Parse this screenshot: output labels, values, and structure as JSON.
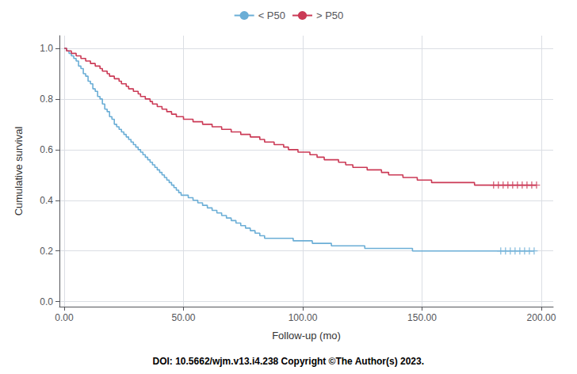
{
  "chart_data": {
    "type": "step",
    "xlabel": "Follow-up (mo)",
    "ylabel": "Cumulative survival",
    "annotation": "DOI: 10.5662/wjm.v13.i4.238 Copyright ©The Author(s) 2023.",
    "xlim": [
      -2,
      205
    ],
    "ylim": [
      -0.02,
      1.05
    ],
    "xticks": [
      {
        "value": 0,
        "label": "0.00"
      },
      {
        "value": 50,
        "label": "50.00"
      },
      {
        "value": 100,
        "label": "100.00"
      },
      {
        "value": 150,
        "label": "150.00"
      },
      {
        "value": 200,
        "label": "200.00"
      }
    ],
    "yticks": [
      {
        "value": 0,
        "label": "0.0"
      },
      0.2,
      0.4,
      0.6,
      0.8,
      {
        "value": 1,
        "label": "1.0"
      }
    ],
    "grid": true,
    "legend": "top",
    "series": [
      {
        "name": "< P50",
        "color": "#6baed6",
        "x": [
          0,
          1,
          2,
          3,
          4,
          5,
          6,
          7,
          8,
          9,
          10,
          11,
          12,
          13,
          14,
          15,
          16,
          17,
          18,
          19,
          20,
          21,
          22,
          23,
          24,
          25,
          26,
          27,
          28,
          29,
          30,
          31,
          32,
          33,
          34,
          35,
          36,
          37,
          38,
          39,
          40,
          41,
          42,
          43,
          44,
          45,
          46,
          47,
          48,
          49,
          50,
          52,
          54,
          56,
          58,
          60,
          62,
          64,
          66,
          68,
          70,
          72,
          74,
          76,
          78,
          80,
          82,
          84,
          86,
          88,
          90,
          92,
          94,
          96,
          98,
          100,
          102,
          104,
          106,
          108,
          110,
          112,
          115,
          118,
          120,
          122,
          124,
          126,
          128,
          130,
          132,
          134,
          136,
          138,
          140,
          142,
          144,
          146,
          148,
          150,
          155,
          160,
          165,
          170,
          175,
          180,
          183,
          185,
          187,
          189,
          191,
          193,
          195,
          197
        ],
        "values": [
          1.0,
          0.99,
          0.98,
          0.97,
          0.96,
          0.95,
          0.93,
          0.92,
          0.9,
          0.89,
          0.87,
          0.86,
          0.84,
          0.83,
          0.81,
          0.8,
          0.78,
          0.76,
          0.75,
          0.73,
          0.72,
          0.7,
          0.69,
          0.68,
          0.67,
          0.66,
          0.65,
          0.64,
          0.63,
          0.62,
          0.61,
          0.6,
          0.59,
          0.58,
          0.57,
          0.56,
          0.55,
          0.54,
          0.53,
          0.52,
          0.51,
          0.5,
          0.49,
          0.48,
          0.47,
          0.46,
          0.45,
          0.44,
          0.43,
          0.42,
          0.42,
          0.41,
          0.4,
          0.39,
          0.38,
          0.37,
          0.36,
          0.35,
          0.34,
          0.33,
          0.32,
          0.31,
          0.3,
          0.29,
          0.28,
          0.27,
          0.26,
          0.25,
          0.25,
          0.25,
          0.25,
          0.25,
          0.25,
          0.24,
          0.24,
          0.24,
          0.24,
          0.23,
          0.23,
          0.23,
          0.23,
          0.22,
          0.22,
          0.22,
          0.22,
          0.22,
          0.22,
          0.21,
          0.21,
          0.21,
          0.21,
          0.21,
          0.21,
          0.21,
          0.21,
          0.21,
          0.21,
          0.2,
          0.2,
          0.2,
          0.2,
          0.2,
          0.2,
          0.2,
          0.2,
          0.2,
          0.2,
          0.2,
          0.2,
          0.2,
          0.2,
          0.2,
          0.2,
          0.2
        ]
      },
      {
        "name": "> P50",
        "color": "#cb3a56",
        "x": [
          0,
          1,
          2,
          3,
          4,
          5,
          6,
          7,
          8,
          9,
          10,
          11,
          12,
          13,
          14,
          15,
          16,
          17,
          18,
          19,
          20,
          21,
          22,
          23,
          24,
          25,
          26,
          27,
          28,
          29,
          30,
          31,
          32,
          33,
          34,
          35,
          36,
          37,
          38,
          39,
          40,
          41,
          42,
          43,
          44,
          45,
          46,
          47,
          48,
          49,
          50,
          52,
          54,
          56,
          58,
          60,
          62,
          64,
          66,
          68,
          70,
          72,
          74,
          76,
          78,
          80,
          82,
          84,
          86,
          88,
          90,
          92,
          94,
          96,
          98,
          100,
          103,
          106,
          109,
          112,
          115,
          118,
          121,
          124,
          127,
          130,
          133,
          136,
          139,
          142,
          145,
          148,
          151,
          154,
          157,
          160,
          163,
          166,
          169,
          172,
          175,
          178,
          180,
          182,
          184,
          186,
          188,
          190,
          192,
          194,
          196,
          198
        ],
        "values": [
          1.0,
          0.99,
          0.99,
          0.98,
          0.98,
          0.97,
          0.97,
          0.96,
          0.96,
          0.95,
          0.95,
          0.94,
          0.94,
          0.93,
          0.93,
          0.92,
          0.91,
          0.91,
          0.9,
          0.89,
          0.89,
          0.88,
          0.88,
          0.87,
          0.86,
          0.86,
          0.85,
          0.84,
          0.84,
          0.83,
          0.83,
          0.82,
          0.81,
          0.81,
          0.8,
          0.8,
          0.79,
          0.78,
          0.78,
          0.77,
          0.77,
          0.76,
          0.76,
          0.75,
          0.75,
          0.74,
          0.74,
          0.73,
          0.73,
          0.73,
          0.72,
          0.72,
          0.71,
          0.71,
          0.7,
          0.7,
          0.69,
          0.69,
          0.68,
          0.68,
          0.67,
          0.67,
          0.66,
          0.66,
          0.65,
          0.65,
          0.64,
          0.63,
          0.63,
          0.62,
          0.62,
          0.61,
          0.6,
          0.6,
          0.59,
          0.59,
          0.58,
          0.57,
          0.56,
          0.56,
          0.55,
          0.54,
          0.53,
          0.53,
          0.52,
          0.52,
          0.51,
          0.5,
          0.5,
          0.49,
          0.49,
          0.48,
          0.48,
          0.47,
          0.47,
          0.47,
          0.47,
          0.47,
          0.47,
          0.46,
          0.46,
          0.46,
          0.46,
          0.46,
          0.46,
          0.46,
          0.46,
          0.46,
          0.46,
          0.46,
          0.46,
          0.46
        ]
      },
      {
        "type": "scatter",
        "marker": "+",
        "color": "#6baed6",
        "x": [
          183,
          185,
          187,
          189,
          191,
          193,
          195,
          197
        ],
        "values": [
          0.2,
          0.2,
          0.2,
          0.2,
          0.2,
          0.2,
          0.2,
          0.2
        ]
      },
      {
        "type": "scatter",
        "marker": "+",
        "color": "#cb3a56",
        "x": [
          180,
          182,
          184,
          186,
          188,
          190,
          192,
          194,
          196,
          198
        ],
        "values": [
          0.46,
          0.46,
          0.46,
          0.46,
          0.46,
          0.46,
          0.46,
          0.46,
          0.46,
          0.46
        ]
      }
    ]
  }
}
